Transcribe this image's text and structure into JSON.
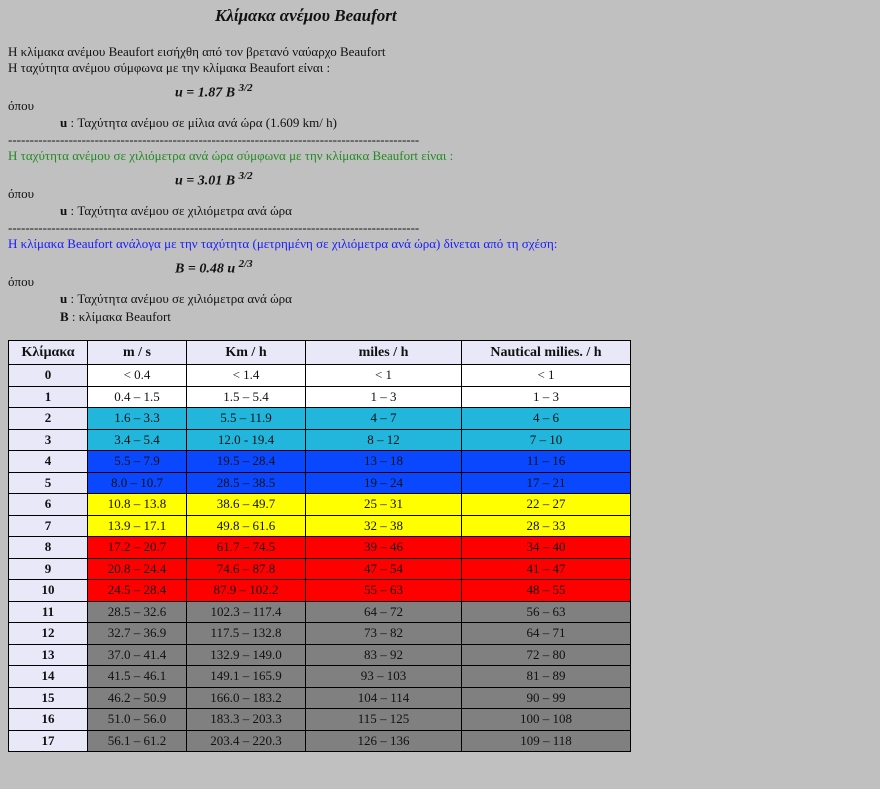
{
  "title": "Κλίμακα ανέμου Beaufort",
  "intro": [
    "Η κλίμακα ανέμου Beaufort εισήχθη από τον βρετανό ναύαρχο Beaufort",
    "Η ταχύτητα ανέμου σύμφωνα με την κλίμακα Beaufort είναι :"
  ],
  "sections": [
    {
      "formula": "u = 1.87 B",
      "exponent": "3/2",
      "where": "όπου",
      "definitions": [
        {
          "symbol": "u",
          "text": " : Ταχύτητα ανέμου σε μίλια ανά ώρα (1.609 km/ h)"
        }
      ],
      "separator": "-----------------------------------------------------------------------------------------------"
    },
    {
      "lead": "Η ταχύτητα ανέμου σε χιλιόμετρα ανά ώρα σύμφωνα με την κλίμακα Beaufort είναι :",
      "lead_color": "#228b22",
      "formula": "u = 3.01 B",
      "exponent": "3/2",
      "where": "όπου",
      "definitions": [
        {
          "symbol": "u",
          "text": " : Ταχύτητα ανέμου σε χιλιόμετρα ανά ώρα"
        }
      ],
      "separator": "-----------------------------------------------------------------------------------------------"
    },
    {
      "lead": "Η κλίμακα Beaufort ανάλογα με την ταχύτητα (μετρημένη σε χιλιόμετρα ανά ώρα) δίνεται από τη σχέση:",
      "lead_color": "#1a1aff",
      "formula": "B = 0.48 u",
      "exponent": "2/3",
      "where": "όπου",
      "definitions": [
        {
          "symbol": "u",
          "text": " : Ταχύτητα ανέμου σε χιλιόμετρα ανά ώρα"
        },
        {
          "symbol": "B",
          "text": " : κλίμακα Beaufort"
        }
      ]
    }
  ],
  "table": {
    "header": [
      "Κλίμακα",
      "m / s",
      "Km / h",
      "miles / h",
      "Nautical milies. / h"
    ],
    "rows": [
      {
        "color": "#ffffff",
        "cells": [
          "0",
          "< 0.4",
          "< 1.4",
          "< 1",
          "< 1"
        ]
      },
      {
        "color": "#ffffff",
        "cells": [
          "1",
          "0.4 – 1.5",
          "1.5 – 5.4",
          "1 – 3",
          "1 – 3"
        ]
      },
      {
        "color": "#22b6dd",
        "cells": [
          "2",
          "1.6 – 3.3",
          "5.5 – 11.9",
          "4 – 7",
          "4 – 6"
        ]
      },
      {
        "color": "#22b6dd",
        "cells": [
          "3",
          "3.4 – 5.4",
          "12.0 - 19.4",
          "8 – 12",
          "7 – 10"
        ]
      },
      {
        "color": "#0a48ff",
        "cells": [
          "4",
          "5.5 – 7.9",
          "19.5 – 28.4",
          "13 – 18",
          "11 – 16"
        ]
      },
      {
        "color": "#0a48ff",
        "cells": [
          "5",
          "8.0 – 10.7",
          "28.5 – 38.5",
          "19 – 24",
          "17 – 21"
        ]
      },
      {
        "color": "#ffff00",
        "cells": [
          "6",
          "10.8 – 13.8",
          "38.6 – 49.7",
          "25 – 31",
          "22 – 27"
        ]
      },
      {
        "color": "#ffff00",
        "cells": [
          "7",
          "13.9 – 17.1",
          "49.8 – 61.6",
          "32 – 38",
          "28 – 33"
        ]
      },
      {
        "color": "#ff0000",
        "cells": [
          "8",
          "17.2 – 20.7",
          "61.7 – 74.5",
          "39 – 46",
          "34 – 40"
        ]
      },
      {
        "color": "#ff0000",
        "cells": [
          "9",
          "20.8 – 24.4",
          "74.6 – 87.8",
          "47 – 54",
          "41 – 47"
        ]
      },
      {
        "color": "#ff0000",
        "cells": [
          "10",
          "24.5 – 28.4",
          "87.9 – 102.2",
          "55 – 63",
          "48 – 55"
        ]
      },
      {
        "color": "#808080",
        "cells": [
          "11",
          "28.5 – 32.6",
          "102.3 – 117.4",
          "64 – 72",
          "56 – 63"
        ]
      },
      {
        "color": "#808080",
        "cells": [
          "12",
          "32.7 – 36.9",
          "117.5 – 132.8",
          "73 – 82",
          "64 – 71"
        ]
      },
      {
        "color": "#808080",
        "cells": [
          "13",
          "37.0 – 41.4",
          "132.9 – 149.0",
          "83 – 92",
          "72 – 80"
        ]
      },
      {
        "color": "#808080",
        "cells": [
          "14",
          "41.5 – 46.1",
          "149.1 – 165.9",
          "93 – 103",
          "81 – 89"
        ]
      },
      {
        "color": "#808080",
        "cells": [
          "15",
          "46.2 – 50.9",
          "166.0 – 183.2",
          "104 – 114",
          "90 – 99"
        ]
      },
      {
        "color": "#808080",
        "cells": [
          "16",
          "51.0 – 56.0",
          "183.3 – 203.3",
          "115 – 125",
          "100 – 108"
        ]
      },
      {
        "color": "#808080",
        "cells": [
          "17",
          "56.1 – 61.2",
          "203.4 – 220.3",
          "126 – 136",
          "109 – 118"
        ]
      }
    ]
  }
}
